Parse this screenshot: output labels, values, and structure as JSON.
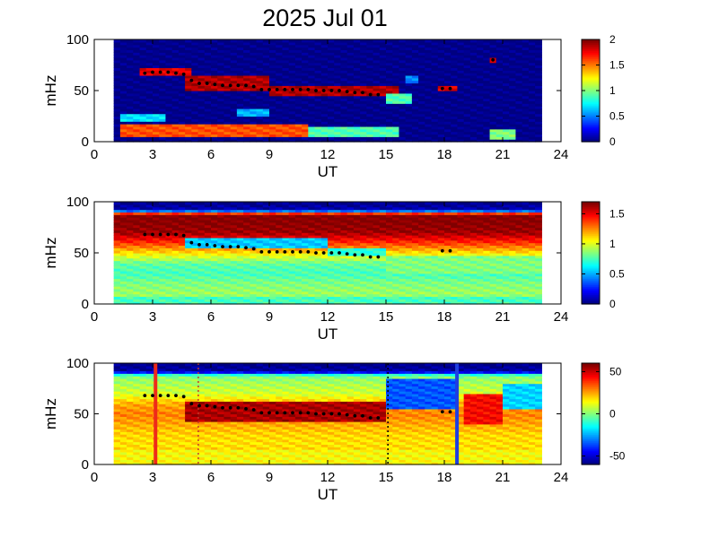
{
  "figure": {
    "title": "2025 Jul 01"
  },
  "chart_data": [
    {
      "type": "heatmap",
      "xlabel": "UT",
      "ylabel": "mHz",
      "xlim": [
        0,
        24
      ],
      "ylim": [
        0,
        100
      ],
      "xticks": [
        0,
        3,
        6,
        9,
        12,
        15,
        18,
        21,
        24
      ],
      "yticks": [
        0,
        50,
        100
      ],
      "data_extent_x": [
        1,
        23
      ],
      "colorbar": {
        "range": [
          0,
          2
        ],
        "ticks": [
          0,
          0.5,
          1,
          1.5,
          2
        ],
        "tick_labels": [
          "0",
          "0.5",
          "1",
          "1.5",
          "2"
        ]
      },
      "background_level": 0,
      "blobs": [
        {
          "x0": 2.5,
          "x1": 5.0,
          "y0": 64,
          "y1": 72,
          "level": 1.8
        },
        {
          "x0": 4.8,
          "x1": 9.0,
          "y0": 50,
          "y1": 64,
          "level": 1.9
        },
        {
          "x0": 9.0,
          "x1": 15.5,
          "y0": 44,
          "y1": 56,
          "level": 1.9
        },
        {
          "x0": 15.0,
          "x1": 16.3,
          "y0": 38,
          "y1": 48,
          "level": 0.9
        },
        {
          "x0": 1.5,
          "x1": 11.0,
          "y0": 5,
          "y1": 18,
          "level": 1.6
        },
        {
          "x0": 11.0,
          "x1": 15.5,
          "y0": 4,
          "y1": 14,
          "level": 0.9
        },
        {
          "x0": 1.5,
          "x1": 3.5,
          "y0": 20,
          "y1": 28,
          "level": 0.7
        },
        {
          "x0": 17.8,
          "x1": 18.8,
          "y0": 50,
          "y1": 55,
          "level": 1.8
        },
        {
          "x0": 20.3,
          "x1": 20.8,
          "y0": 77,
          "y1": 82,
          "level": 1.8
        },
        {
          "x0": 20.5,
          "x1": 21.8,
          "y0": 3,
          "y1": 12,
          "level": 1.0
        },
        {
          "x0": 16.0,
          "x1": 16.8,
          "y0": 58,
          "y1": 64,
          "level": 0.5
        },
        {
          "x0": 7.5,
          "x1": 9.0,
          "y0": 26,
          "y1": 32,
          "level": 0.6
        }
      ],
      "markers": [
        [
          2.6,
          67
        ],
        [
          3.0,
          68
        ],
        [
          3.4,
          68
        ],
        [
          3.8,
          68
        ],
        [
          4.2,
          67
        ],
        [
          4.6,
          66
        ],
        [
          5.0,
          60
        ],
        [
          5.4,
          57
        ],
        [
          5.8,
          57
        ],
        [
          6.2,
          56
        ],
        [
          6.6,
          55
        ],
        [
          7.0,
          55
        ],
        [
          7.4,
          55
        ],
        [
          7.8,
          55
        ],
        [
          8.2,
          54
        ],
        [
          8.6,
          51
        ],
        [
          9.0,
          51
        ],
        [
          9.4,
          51
        ],
        [
          9.8,
          51
        ],
        [
          10.2,
          51
        ],
        [
          10.6,
          51
        ],
        [
          11.0,
          51
        ],
        [
          11.4,
          50
        ],
        [
          11.8,
          50
        ],
        [
          12.2,
          50
        ],
        [
          12.6,
          50
        ],
        [
          13.0,
          49
        ],
        [
          13.4,
          48
        ],
        [
          13.8,
          48
        ],
        [
          14.2,
          46
        ],
        [
          14.6,
          46
        ],
        [
          17.9,
          52
        ],
        [
          18.3,
          52
        ],
        [
          20.5,
          80
        ]
      ],
      "marker_colors": []
    },
    {
      "type": "heatmap",
      "xlabel": "UT",
      "ylabel": "mHz",
      "xlim": [
        0,
        24
      ],
      "ylim": [
        0,
        100
      ],
      "xticks": [
        0,
        3,
        6,
        9,
        12,
        15,
        18,
        21,
        24
      ],
      "yticks": [
        0,
        50,
        100
      ],
      "data_extent_x": [
        1,
        23
      ],
      "colorbar": {
        "range": [
          0,
          1.7
        ],
        "ticks": [
          0,
          0.5,
          1,
          1.5
        ],
        "tick_labels": [
          "0",
          "0.5",
          "1",
          "1.5"
        ]
      },
      "base_profile": [
        [
          0,
          0.6
        ],
        [
          5,
          0.85
        ],
        [
          10,
          0.9
        ],
        [
          20,
          0.85
        ],
        [
          30,
          0.75
        ],
        [
          40,
          0.8
        ],
        [
          50,
          1.1
        ],
        [
          60,
          1.4
        ],
        [
          70,
          1.65
        ],
        [
          80,
          1.7
        ],
        [
          88,
          1.7
        ],
        [
          92,
          0.1
        ],
        [
          100,
          0.0
        ]
      ],
      "blobs": [
        {
          "x0": 4.8,
          "x1": 12.0,
          "y0": 55,
          "y1": 65,
          "level": 0.55
        },
        {
          "x0": 12.0,
          "x1": 15.0,
          "y0": 48,
          "y1": 56,
          "level": 0.7
        },
        {
          "x0": 1.0,
          "x1": 23.0,
          "y0": 0,
          "y1": 8,
          "level": 0.75
        },
        {
          "x0": 15.0,
          "x1": 23.0,
          "y0": 30,
          "y1": 48,
          "level": 0.85
        }
      ],
      "markers": [
        [
          2.6,
          68
        ],
        [
          3.0,
          68
        ],
        [
          3.4,
          68
        ],
        [
          3.8,
          68
        ],
        [
          4.2,
          68
        ],
        [
          4.6,
          67
        ],
        [
          5.0,
          60
        ],
        [
          5.4,
          58
        ],
        [
          5.8,
          58
        ],
        [
          6.2,
          57
        ],
        [
          6.6,
          56
        ],
        [
          7.0,
          56
        ],
        [
          7.4,
          56
        ],
        [
          7.8,
          55
        ],
        [
          8.2,
          54
        ],
        [
          8.6,
          51
        ],
        [
          9.0,
          51
        ],
        [
          9.4,
          51
        ],
        [
          9.8,
          51
        ],
        [
          10.2,
          51
        ],
        [
          10.6,
          51
        ],
        [
          11.0,
          51
        ],
        [
          11.4,
          50
        ],
        [
          11.8,
          50
        ],
        [
          12.2,
          50
        ],
        [
          12.6,
          50
        ],
        [
          13.0,
          49
        ],
        [
          13.4,
          48
        ],
        [
          13.8,
          48
        ],
        [
          14.2,
          46
        ],
        [
          14.6,
          46
        ],
        [
          17.9,
          52
        ],
        [
          18.3,
          52
        ]
      ],
      "marker_colors": []
    },
    {
      "type": "heatmap",
      "xlabel": "UT",
      "ylabel": "mHz",
      "xlim": [
        0,
        24
      ],
      "ylim": [
        0,
        100
      ],
      "xticks": [
        0,
        3,
        6,
        9,
        12,
        15,
        18,
        21,
        24
      ],
      "yticks": [
        0,
        50,
        100
      ],
      "data_extent_x": [
        1,
        23
      ],
      "colorbar": {
        "range": [
          -60,
          60
        ],
        "ticks": [
          -50,
          0,
          50
        ],
        "tick_labels": [
          "-50",
          "0",
          "50"
        ]
      },
      "base_profile": [
        [
          0,
          20
        ],
        [
          10,
          22
        ],
        [
          20,
          18
        ],
        [
          30,
          20
        ],
        [
          40,
          25
        ],
        [
          50,
          30
        ],
        [
          60,
          25
        ],
        [
          70,
          10
        ],
        [
          80,
          5
        ],
        [
          88,
          0
        ],
        [
          92,
          -55
        ],
        [
          100,
          -60
        ]
      ],
      "blobs": [
        {
          "x0": 4.8,
          "x1": 15.0,
          "y0": 42,
          "y1": 62,
          "level": 55
        },
        {
          "x0": 15.0,
          "x1": 18.5,
          "y0": 55,
          "y1": 85,
          "level": -35
        },
        {
          "x0": 19.0,
          "x1": 21.0,
          "y0": 40,
          "y1": 70,
          "level": 45
        },
        {
          "x0": 21.0,
          "x1": 23.0,
          "y0": 55,
          "y1": 80,
          "level": -20
        },
        {
          "x0": 1.0,
          "x1": 23.0,
          "y0": 0,
          "y1": 15,
          "level": 15
        }
      ],
      "markers": [
        [
          2.6,
          68
        ],
        [
          3.0,
          68
        ],
        [
          3.4,
          68
        ],
        [
          3.8,
          68
        ],
        [
          4.2,
          68
        ],
        [
          4.6,
          67
        ],
        [
          5.0,
          60
        ],
        [
          5.4,
          58
        ],
        [
          5.8,
          58
        ],
        [
          6.2,
          57
        ],
        [
          6.6,
          56
        ],
        [
          7.0,
          56
        ],
        [
          7.4,
          56
        ],
        [
          7.8,
          55
        ],
        [
          8.2,
          54
        ],
        [
          8.6,
          51
        ],
        [
          9.0,
          51
        ],
        [
          9.4,
          51
        ],
        [
          9.8,
          51
        ],
        [
          10.2,
          51
        ],
        [
          10.6,
          51
        ],
        [
          11.0,
          51
        ],
        [
          11.4,
          50
        ],
        [
          11.8,
          50
        ],
        [
          12.2,
          50
        ],
        [
          12.6,
          50
        ],
        [
          13.0,
          49
        ],
        [
          13.4,
          48
        ],
        [
          13.8,
          48
        ],
        [
          14.2,
          46
        ],
        [
          14.6,
          46
        ],
        [
          17.9,
          52
        ],
        [
          18.3,
          52
        ]
      ],
      "vlines": [
        {
          "x": 3.15,
          "color": "#ee2a1a",
          "style": "solid"
        },
        {
          "x": 5.35,
          "color": "#c0392b",
          "style": "dotted"
        },
        {
          "x": 15.1,
          "color": "#000000",
          "style": "dotted"
        },
        {
          "x": 18.65,
          "color": "#1f3fe0",
          "style": "solid"
        }
      ]
    }
  ]
}
